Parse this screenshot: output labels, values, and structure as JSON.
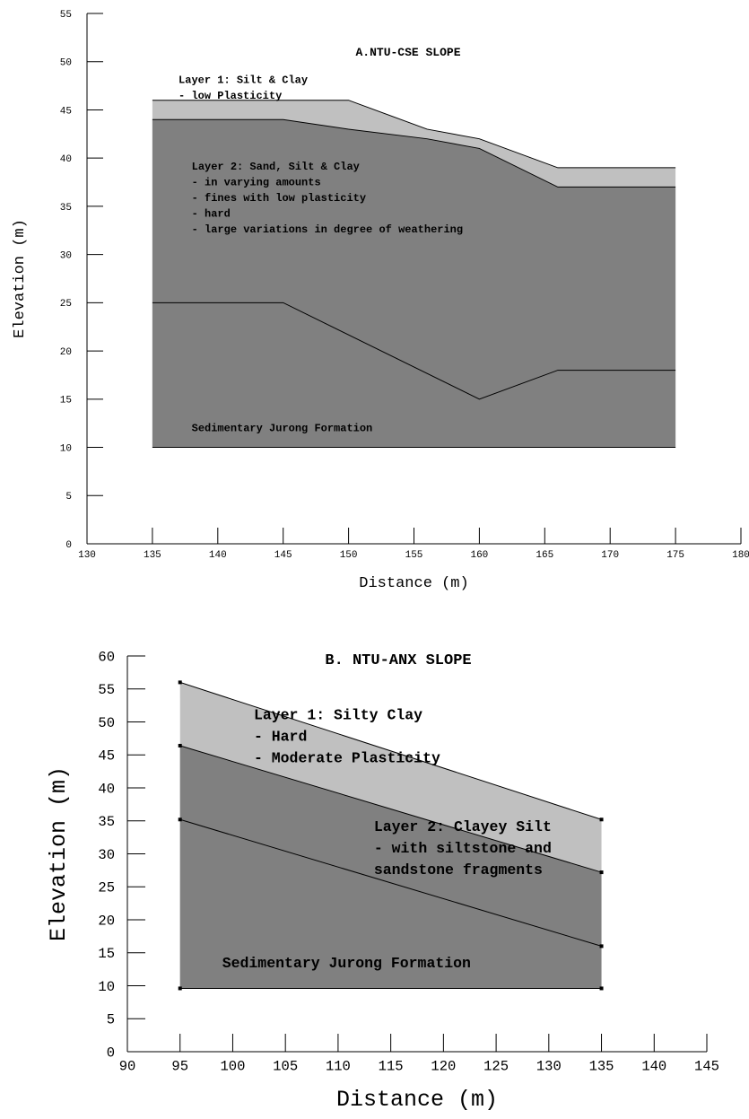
{
  "chart_data": [
    {
      "type": "area",
      "title": "A.NTU-CSE SLOPE",
      "xlabel": "Distance (m)",
      "ylabel": "Elevation (m)",
      "xlim": [
        130,
        180
      ],
      "ylim": [
        0,
        55
      ],
      "xticks": [
        130,
        135,
        140,
        145,
        150,
        155,
        160,
        165,
        170,
        175,
        180
      ],
      "yticks": [
        0,
        5,
        10,
        15,
        20,
        25,
        30,
        35,
        40,
        45,
        50,
        55
      ],
      "grid": false,
      "colors": {
        "layer1": "#c0c0c0",
        "layer2": "#808080"
      },
      "series": [
        {
          "name": "Layer 1: Silt & Clay",
          "role": "layer1-top",
          "x": [
            135,
            145,
            150,
            156,
            160,
            166,
            175
          ],
          "y": [
            46,
            46,
            46,
            43,
            42,
            39,
            39
          ]
        },
        {
          "name": "Layer 2: Sand, Silt & Clay",
          "role": "layer2-top",
          "x": [
            135,
            145,
            150,
            156,
            160,
            166,
            175
          ],
          "y": [
            44,
            44,
            43,
            42,
            41,
            37,
            37
          ]
        },
        {
          "name": "Sedimentary Jurong Formation",
          "role": "formation-top",
          "x": [
            135,
            145,
            160,
            166,
            175
          ],
          "y": [
            25,
            25,
            15,
            18,
            18
          ]
        },
        {
          "name": "",
          "role": "base",
          "x": [
            135,
            175
          ],
          "y": [
            10,
            10
          ]
        }
      ],
      "annotations": [
        {
          "lines": [
            "Layer 1: Silt & Clay",
            "- low Plasticity"
          ],
          "x": 137,
          "y": 47.8
        },
        {
          "lines": [
            "Layer 2: Sand, Silt & Clay",
            "- in varying amounts",
            "- fines with low plasticity",
            "- hard",
            "- large variations in degree of weathering"
          ],
          "x": 138,
          "y": 38.8
        },
        {
          "lines": [
            "Sedimentary Jurong Formation"
          ],
          "x": 138,
          "y": 11.7
        }
      ]
    },
    {
      "type": "area",
      "title": "B. NTU-ANX SLOPE",
      "xlabel": "Distance (m)",
      "ylabel": "Elevation (m)",
      "xlim": [
        90,
        145
      ],
      "ylim": [
        0,
        60
      ],
      "xticks": [
        90,
        95,
        100,
        105,
        110,
        115,
        120,
        125,
        130,
        135,
        140,
        145
      ],
      "yticks": [
        0,
        5,
        10,
        15,
        20,
        25,
        30,
        35,
        40,
        45,
        50,
        55,
        60
      ],
      "grid": false,
      "colors": {
        "layer1": "#c0c0c0",
        "layer2": "#808080"
      },
      "series": [
        {
          "name": "Layer 1: Silty Clay",
          "role": "layer1-top",
          "x": [
            95,
            135
          ],
          "y": [
            56,
            35.2
          ]
        },
        {
          "name": "Layer 2: Clayey Silt",
          "role": "layer2-top",
          "x": [
            95,
            135
          ],
          "y": [
            46.4,
            27.2
          ]
        },
        {
          "name": "Sedimentary Jurong Formation",
          "role": "formation-top",
          "x": [
            95,
            135
          ],
          "y": [
            35.2,
            16
          ]
        },
        {
          "name": "",
          "role": "base",
          "x": [
            95,
            135
          ],
          "y": [
            9.6,
            9.6
          ]
        }
      ],
      "annotations": [
        {
          "lines": [
            "Layer 1: Silty Clay",
            "- Hard",
            "- Moderate Plasticity"
          ],
          "x": 102,
          "y": 50.4
        },
        {
          "lines": [
            "Layer 2: Clayey Silt",
            "- with siltstone and",
            "sandstone fragments"
          ],
          "x": 113.4,
          "y": 33.5
        },
        {
          "lines": [
            "Sedimentary Jurong Formation"
          ],
          "x": 99,
          "y": 12.8
        }
      ]
    }
  ]
}
